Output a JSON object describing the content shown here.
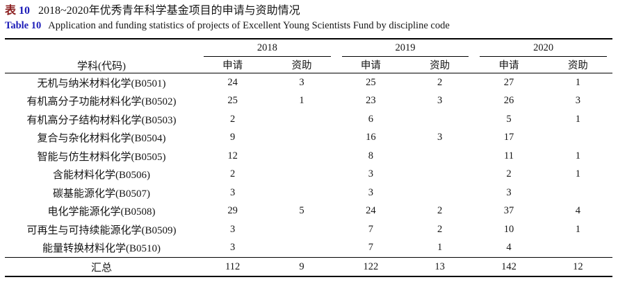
{
  "captions": {
    "zh_label": "表",
    "zh_number": "10",
    "zh_title": "2018~2020年优秀青年科学基金项目的申请与资助情况",
    "en_label": "Table 10",
    "en_title": "Application and funding statistics of projects of Excellent Young Scientists Fund by discipline code"
  },
  "colors": {
    "caption_zh_label": "#8b1f1f",
    "caption_accent_blue": "#1b1bb8",
    "text": "#151515",
    "rule": "#000000"
  },
  "table": {
    "discipline_header": "学科(代码)",
    "years": [
      "2018",
      "2019",
      "2020"
    ],
    "sub_headers": [
      "申请",
      "资助"
    ],
    "rows": [
      {
        "discipline": "无机与纳米材料化学(B0501)",
        "values": [
          "24",
          "3",
          "25",
          "2",
          "27",
          "1"
        ]
      },
      {
        "discipline": "有机高分子功能材料化学(B0502)",
        "values": [
          "25",
          "1",
          "23",
          "3",
          "26",
          "3"
        ]
      },
      {
        "discipline": "有机高分子结构材料化学(B0503)",
        "values": [
          "2",
          "",
          "6",
          "",
          "5",
          "1"
        ]
      },
      {
        "discipline": "复合与杂化材料化学(B0504)",
        "values": [
          "9",
          "",
          "16",
          "3",
          "17",
          ""
        ]
      },
      {
        "discipline": "智能与仿生材料化学(B0505)",
        "values": [
          "12",
          "",
          "8",
          "",
          "11",
          "1"
        ]
      },
      {
        "discipline": "含能材料化学(B0506)",
        "values": [
          "2",
          "",
          "3",
          "",
          "2",
          "1"
        ]
      },
      {
        "discipline": "碳基能源化学(B0507)",
        "values": [
          "3",
          "",
          "3",
          "",
          "3",
          ""
        ]
      },
      {
        "discipline": "电化学能源化学(B0508)",
        "values": [
          "29",
          "5",
          "24",
          "2",
          "37",
          "4"
        ]
      },
      {
        "discipline": "可再生与可持续能源化学(B0509)",
        "values": [
          "3",
          "",
          "7",
          "2",
          "10",
          "1"
        ]
      },
      {
        "discipline": "能量转换材料化学(B0510)",
        "values": [
          "3",
          "",
          "7",
          "1",
          "4",
          ""
        ]
      }
    ],
    "summary": {
      "label": "汇总",
      "values": [
        "112",
        "9",
        "122",
        "13",
        "142",
        "12"
      ]
    }
  }
}
